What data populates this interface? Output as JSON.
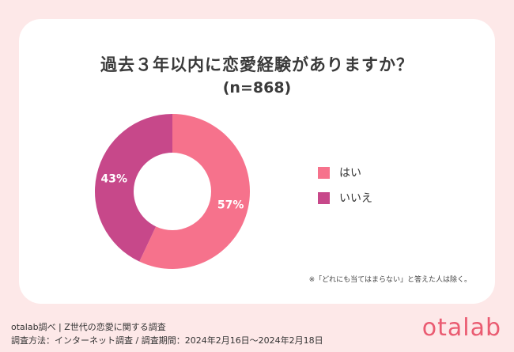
{
  "title": "過去３年以内に恋愛経験がありますか？",
  "subtitle": "(n=868)",
  "chart_data": {
    "type": "pie",
    "style": "donut",
    "categories": [
      "はい",
      "いいえ"
    ],
    "values": [
      57,
      43
    ],
    "labels": [
      "57%",
      "43%"
    ],
    "colors": [
      "#f6728c",
      "#c7488a"
    ],
    "legend_position": "right"
  },
  "note": "※「どれにも当てはまらない」と答えた人は除く。",
  "footer": {
    "line1": "otalab調べ | Z世代の恋愛に関する調査",
    "line2": "調査方法：インターネット調査 / 調査期間：2024年2月16日〜2024年2月18日"
  },
  "logo": "otalab"
}
